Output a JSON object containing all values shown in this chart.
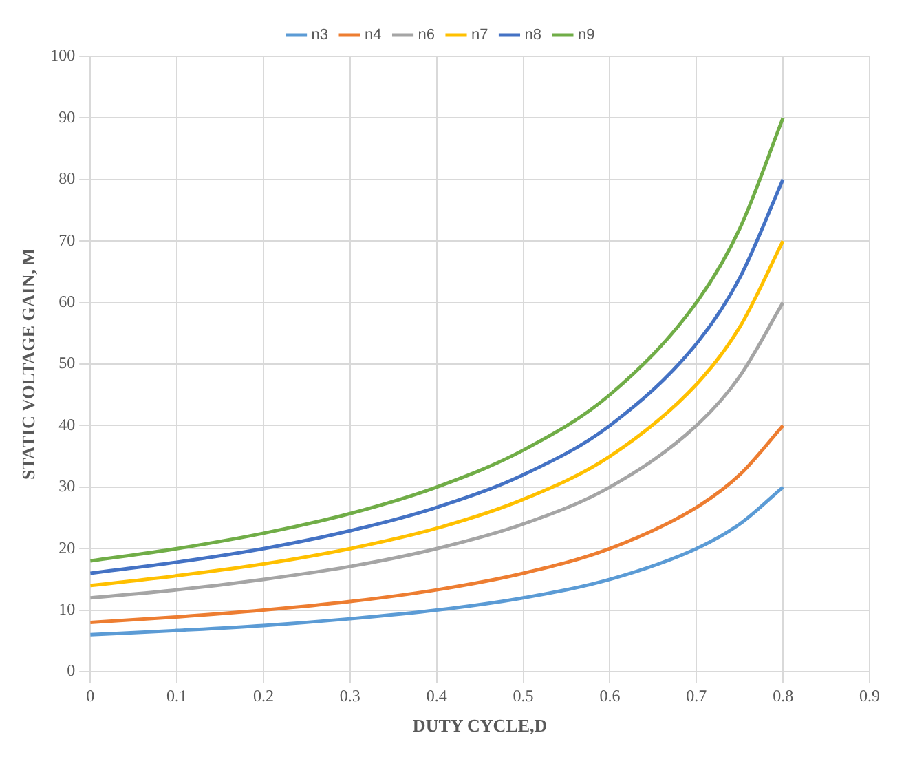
{
  "chart_data": {
    "type": "line",
    "xlabel": "DUTY CYCLE,D",
    "ylabel": "STATIC VOLTAGE GAIN, M",
    "x": [
      0,
      0.1,
      0.2,
      0.3,
      0.4,
      0.5,
      0.6,
      0.7,
      0.75,
      0.8
    ],
    "series": [
      {
        "name": "n3",
        "color": "#5b9bd5",
        "values": [
          6,
          6.7,
          7.5,
          8.6,
          10,
          12,
          15,
          20,
          24,
          30
        ]
      },
      {
        "name": "n4",
        "color": "#ed7d31",
        "values": [
          8,
          8.9,
          10,
          11.4,
          13.3,
          16,
          20,
          26.7,
          32,
          40
        ]
      },
      {
        "name": "n6",
        "color": "#a5a5a5",
        "values": [
          12,
          13.3,
          15,
          17.1,
          20,
          24,
          30,
          40,
          48,
          60
        ]
      },
      {
        "name": "n7",
        "color": "#ffc000",
        "values": [
          14,
          15.6,
          17.5,
          20,
          23.3,
          28,
          35,
          46.7,
          56,
          70
        ]
      },
      {
        "name": "n8",
        "color": "#4472c4",
        "values": [
          16,
          17.8,
          20,
          22.9,
          26.7,
          32,
          40,
          53.3,
          64,
          80
        ]
      },
      {
        "name": "n9",
        "color": "#70ad47",
        "values": [
          18,
          20,
          22.5,
          25.7,
          30,
          36,
          45,
          60,
          72,
          90
        ]
      }
    ],
    "xlim": [
      0,
      0.9
    ],
    "xticks": [
      0,
      0.1,
      0.2,
      0.3,
      0.4,
      0.5,
      0.6,
      0.7,
      0.8,
      0.9
    ],
    "ylim": [
      0,
      100
    ],
    "yticks": [
      0,
      10,
      20,
      30,
      40,
      50,
      60,
      70,
      80,
      90,
      100
    ],
    "grid": true,
    "legend": "top",
    "marker": "none",
    "line_style": "solid"
  }
}
